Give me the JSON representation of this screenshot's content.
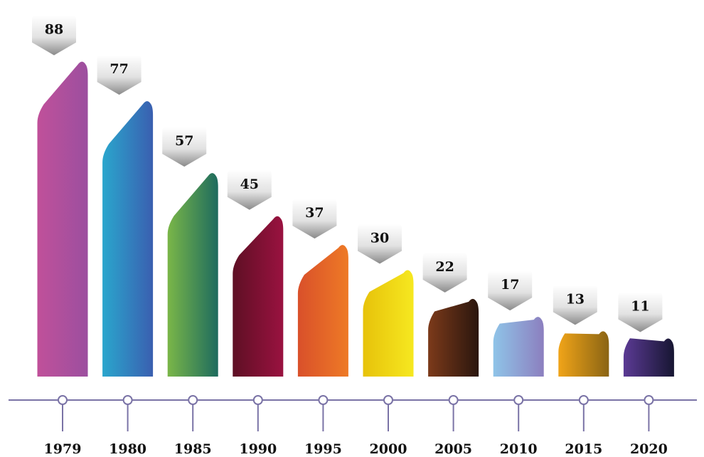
{
  "chart_data": {
    "type": "bar",
    "categories": [
      "1979",
      "1980",
      "1985",
      "1990",
      "1995",
      "2000",
      "2005",
      "2010",
      "2015",
      "2020"
    ],
    "values": [
      88,
      77,
      57,
      45,
      37,
      30,
      22,
      17,
      13,
      11
    ],
    "value_labels": [
      "88",
      "77",
      "57",
      "45",
      "37",
      "30",
      "22",
      "17",
      "13",
      "11"
    ],
    "title": "",
    "xlabel": "",
    "ylabel": "",
    "grid": false,
    "legend": "none",
    "bar_colors": [
      [
        "#c0509a",
        "#9c4f9f"
      ],
      [
        "#2aa6cd",
        "#3a5fb0"
      ],
      [
        "#7ab648",
        "#1d6b5e"
      ],
      [
        "#5e0f24",
        "#9a1240"
      ],
      [
        "#d9502a",
        "#ee7a26"
      ],
      [
        "#e7c20a",
        "#f6e820"
      ],
      [
        "#7c3a1a",
        "#2a160e"
      ],
      [
        "#8fc4e8",
        "#8c7fbf"
      ],
      [
        "#f0a418",
        "#8a6414"
      ],
      [
        "#5b3a94",
        "#171632"
      ]
    ],
    "axis_color": "#7a73a6"
  }
}
